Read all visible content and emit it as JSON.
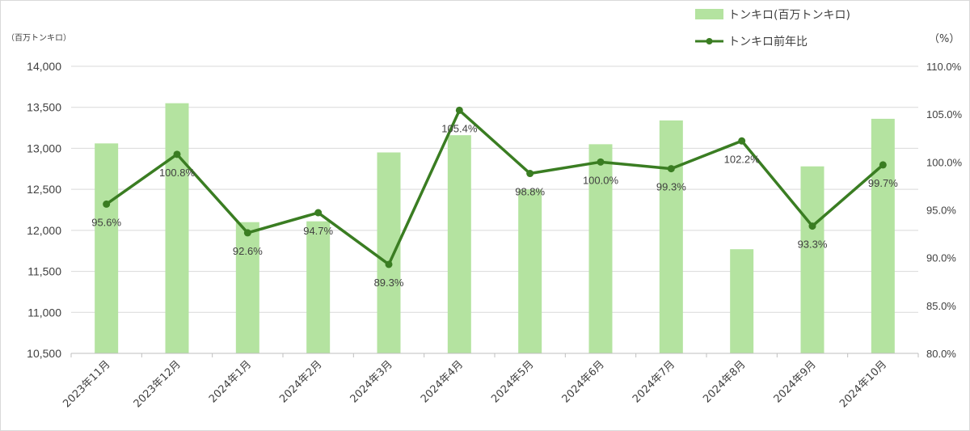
{
  "chart_data": {
    "type": "bar",
    "categories": [
      "2023年11月",
      "2023年12月",
      "2024年1月",
      "2024年2月",
      "2024年3月",
      "2024年4月",
      "2024年5月",
      "2024年6月",
      "2024年7月",
      "2024年8月",
      "2024年9月",
      "2024年10月"
    ],
    "series": [
      {
        "name": "トンキロ(百万トンキロ)",
        "type": "bar",
        "axis": "left",
        "color": "#b4e3a0",
        "values": [
          13060,
          13550,
          12100,
          12110,
          12950,
          13160,
          12500,
          13050,
          13340,
          11770,
          12780,
          13360
        ]
      },
      {
        "name": "トンキロ前年比",
        "type": "line",
        "axis": "right",
        "color": "#3a7d22",
        "values": [
          95.6,
          100.8,
          92.6,
          94.7,
          89.3,
          105.4,
          98.8,
          100.0,
          99.3,
          102.2,
          93.3,
          99.7
        ],
        "labels": [
          "95.6%",
          "100.8%",
          "92.6%",
          "94.7%",
          "89.3%",
          "105.4%",
          "98.8%",
          "100.0%",
          "99.3%",
          "102.2%",
          "93.3%",
          "99.7%"
        ]
      }
    ],
    "y_left": {
      "unit_label": "（百万トンキロ）",
      "ylim": [
        10500,
        14000
      ],
      "ticks": [
        10500,
        11000,
        11500,
        12000,
        12500,
        13000,
        13500,
        14000
      ],
      "tick_labels": [
        "10,500",
        "11,000",
        "11,500",
        "12,000",
        "12,500",
        "13,000",
        "13,500",
        "14,000"
      ]
    },
    "y_right": {
      "unit_label": "（%）",
      "ylim": [
        80,
        110
      ],
      "ticks": [
        80,
        85,
        90,
        95,
        100,
        105,
        110
      ],
      "tick_labels": [
        "80.0%",
        "85.0%",
        "90.0%",
        "95.0%",
        "100.0%",
        "105.0%",
        "110.0%"
      ]
    },
    "grid": true,
    "legend_position": "top-right"
  }
}
